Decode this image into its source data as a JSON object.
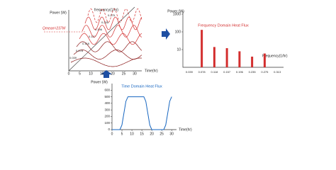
{
  "diagram": {
    "y_label": "Power (W)",
    "x_label": "Time(hr)",
    "freq_label": "frequency(1/hr)",
    "mean_label": "Qmean=237W",
    "freq_labels": [
      "0.039",
      "0.078",
      "0.118",
      "0.157",
      "0.196",
      "0.235",
      "0.275"
    ],
    "x_ticks": [
      0,
      5,
      10,
      15,
      20,
      25,
      30
    ]
  },
  "chart_data": [
    {
      "type": "bar",
      "title": "Frequency Domain Heat Flux",
      "y_label": "Power (W)",
      "x_label": "Frequency(1/hr)",
      "categories": [
        "0.039",
        "0.078",
        "0.118",
        "0.157",
        "0.196",
        "0.235",
        "0.275",
        "0.313"
      ],
      "values": [
        null,
        130,
        14,
        12,
        8,
        4,
        6,
        null
      ],
      "color": "#d32f2f",
      "log_scale": true,
      "ylim": [
        1,
        1000
      ],
      "yticks": [
        10,
        100,
        1000
      ]
    },
    {
      "type": "line",
      "title": "Time Domain Heat Flux",
      "y_label": "Power (W)",
      "x_label": "Time(hr)",
      "x": [
        0,
        4,
        5,
        6,
        7,
        8,
        16,
        17,
        18,
        19,
        20,
        26,
        27,
        28,
        29,
        30
      ],
      "values": [
        0,
        0,
        70,
        250,
        430,
        500,
        500,
        430,
        250,
        70,
        0,
        0,
        70,
        250,
        430,
        500
      ],
      "color": "#1565c0",
      "xlim": [
        0,
        31
      ],
      "xticks": [
        0,
        5,
        10,
        15,
        20,
        25,
        30
      ],
      "ylim": [
        0,
        700
      ],
      "yticks": [
        0,
        100,
        200,
        300,
        400,
        500,
        600
      ]
    }
  ]
}
